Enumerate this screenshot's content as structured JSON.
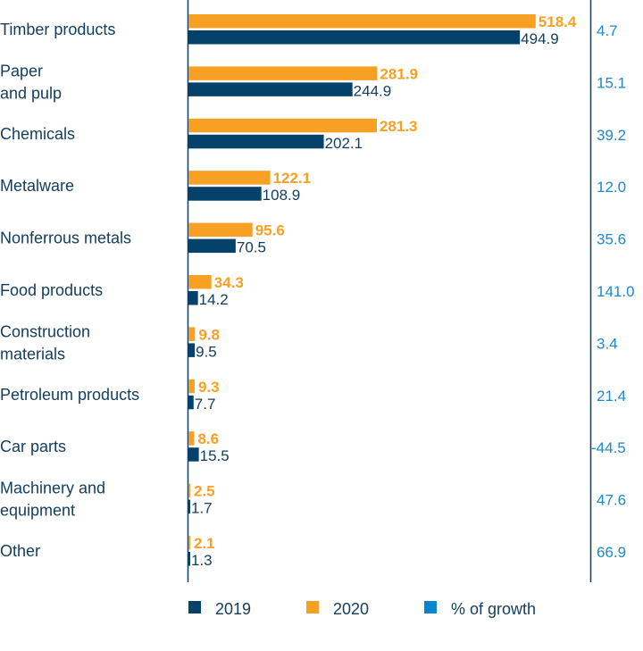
{
  "chart_data": {
    "type": "bar",
    "orientation": "horizontal",
    "categories": [
      [
        "Timber products"
      ],
      [
        "Paper",
        "and pulp"
      ],
      [
        "Chemicals"
      ],
      [
        "Metalware"
      ],
      [
        "Nonferrous metals"
      ],
      [
        "Food products"
      ],
      [
        "Construction",
        "materials"
      ],
      [
        "Petroleum products"
      ],
      [
        "Car parts"
      ],
      [
        "Machinery and",
        "equipment"
      ],
      [
        "Other"
      ]
    ],
    "series": [
      {
        "name": "2020",
        "color": "#f7a024",
        "values": [
          518.4,
          281.9,
          281.3,
          122.1,
          95.6,
          34.3,
          9.8,
          9.3,
          8.6,
          2.5,
          2.1
        ]
      },
      {
        "name": "2019",
        "color": "#04426b",
        "values": [
          494.9,
          244.9,
          202.1,
          108.9,
          70.5,
          14.2,
          9.5,
          7.7,
          15.5,
          1.7,
          1.3
        ]
      }
    ],
    "growth": {
      "name": "% of growth",
      "color": "#0a84cc",
      "values": [
        "4.7",
        "15.1",
        "39.2",
        "12.0",
        "35.6",
        "141.0",
        "3.4",
        "21.4",
        "-44.5",
        "47.6",
        "66.9"
      ]
    },
    "legend": [
      {
        "label": "2019",
        "color": "#04426b"
      },
      {
        "label": "2020",
        "color": "#f7a024"
      },
      {
        "label": "% of growth",
        "color": "#0a84cc"
      }
    ],
    "legend_position": "bottom",
    "grid": false,
    "xlim": [
      0,
      520
    ]
  }
}
